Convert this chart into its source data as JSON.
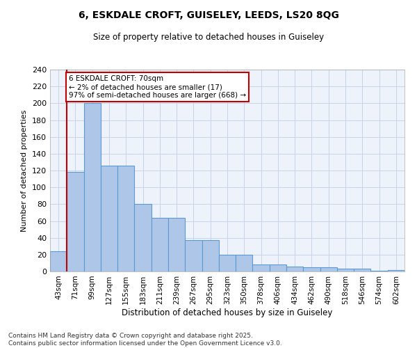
{
  "title1": "6, ESKDALE CROFT, GUISELEY, LEEDS, LS20 8QG",
  "title2": "Size of property relative to detached houses in Guiseley",
  "xlabel": "Distribution of detached houses by size in Guiseley",
  "ylabel": "Number of detached properties",
  "bar_heights": [
    24,
    118,
    200,
    126,
    126,
    80,
    64,
    64,
    37,
    37,
    20,
    20,
    8,
    8,
    6,
    5,
    5,
    3,
    3,
    1,
    2
  ],
  "categories": [
    "43sqm",
    "71sqm",
    "99sqm",
    "127sqm",
    "155sqm",
    "183sqm",
    "211sqm",
    "239sqm",
    "267sqm",
    "295sqm",
    "323sqm",
    "350sqm",
    "378sqm",
    "406sqm",
    "434sqm",
    "462sqm",
    "490sqm",
    "518sqm",
    "546sqm",
    "574sqm",
    "602sqm"
  ],
  "bar_color": "#aec6e8",
  "bar_edge_color": "#5b9bd5",
  "grid_color": "#c8d4e8",
  "background_color": "#eef2fa",
  "annotation_text": "6 ESKDALE CROFT: 70sqm\n← 2% of detached houses are smaller (17)\n97% of semi-detached houses are larger (668) →",
  "vline_color": "#c00000",
  "annotation_box_color": "#c00000",
  "footer": "Contains HM Land Registry data © Crown copyright and database right 2025.\nContains public sector information licensed under the Open Government Licence v3.0.",
  "ylim": [
    0,
    240
  ],
  "yticks": [
    0,
    20,
    40,
    60,
    80,
    100,
    120,
    140,
    160,
    180,
    200,
    220,
    240
  ]
}
